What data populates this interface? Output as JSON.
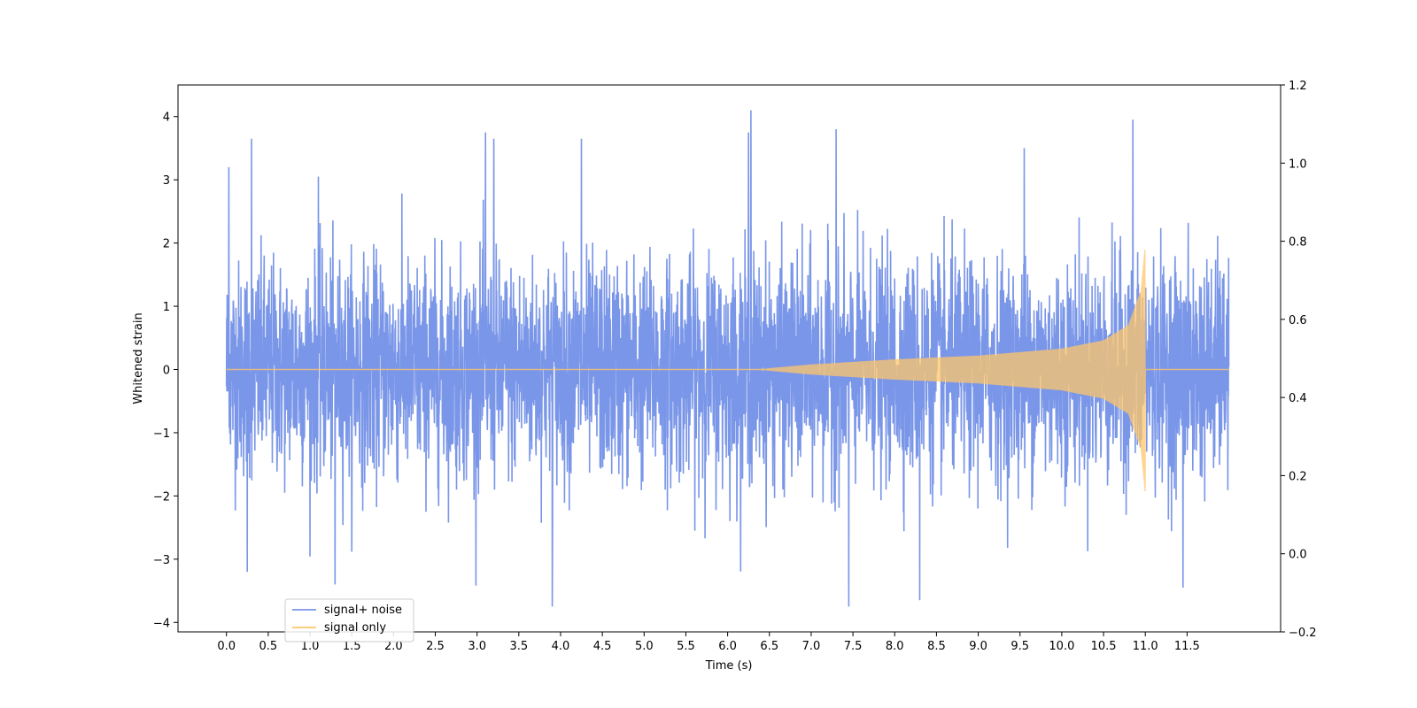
{
  "chart_data": {
    "type": "line",
    "title": "",
    "xlabel": "Time (s)",
    "ylabel": "Whitened strain",
    "xlim": [
      -0.58,
      12.62
    ],
    "ylim": [
      -4.15,
      4.5
    ],
    "ylim_right": [
      -0.2,
      1.2
    ],
    "x_ticks": [
      "0.0",
      "0.5",
      "1.0",
      "1.5",
      "2.0",
      "2.5",
      "3.0",
      "3.5",
      "4.0",
      "4.5",
      "5.0",
      "5.5",
      "6.0",
      "6.5",
      "7.0",
      "7.5",
      "8.0",
      "8.5",
      "9.0",
      "9.5",
      "10.0",
      "10.5",
      "11.0",
      "11.5"
    ],
    "y_ticks": [
      "−4",
      "−3",
      "−2",
      "−1",
      "0",
      "1",
      "2",
      "3",
      "4"
    ],
    "y_ticks_right": [
      "−0.2",
      "0.0",
      "0.2",
      "0.4",
      "0.6",
      "0.8",
      "1.0",
      "1.2"
    ],
    "grid": false,
    "legend_placement": "lower-left",
    "series": [
      {
        "name": "signal+ noise",
        "color": "#7a96e8",
        "description_values": {
          "x_range": [
            0.0,
            12.0
          ],
          "typical_envelope": [
            -2.3,
            2.3
          ],
          "peaks": [
            {
              "x": 0.03,
              "y": 3.2
            },
            {
              "x": 0.3,
              "y": 3.65
            },
            {
              "x": 1.1,
              "y": 3.05
            },
            {
              "x": 3.1,
              "y": 3.75
            },
            {
              "x": 3.2,
              "y": 3.65
            },
            {
              "x": 4.25,
              "y": 3.65
            },
            {
              "x": 6.25,
              "y": 3.75
            },
            {
              "x": 6.28,
              "y": 4.1
            },
            {
              "x": 7.3,
              "y": 3.8
            },
            {
              "x": 9.55,
              "y": 3.5
            },
            {
              "x": 10.85,
              "y": 3.95
            },
            {
              "x": 3.9,
              "y": -3.75
            },
            {
              "x": 7.45,
              "y": -3.75
            },
            {
              "x": 8.3,
              "y": -3.65
            },
            {
              "x": 11.45,
              "y": -3.45
            },
            {
              "x": 1.3,
              "y": -3.4
            },
            {
              "x": 0.25,
              "y": -3.2
            }
          ]
        }
      },
      {
        "name": "signal only",
        "color": "#ffc66b",
        "description_values": {
          "type": "chirp",
          "onset_x": 6.4,
          "merger_x": 10.98,
          "ringdown_end_x": 11.0,
          "amplitude_points": [
            {
              "x": 6.5,
              "y": 0.02
            },
            {
              "x": 7.0,
              "y": 0.08
            },
            {
              "x": 8.0,
              "y": 0.16
            },
            {
              "x": 9.0,
              "y": 0.22
            },
            {
              "x": 10.0,
              "y": 0.33
            },
            {
              "x": 10.5,
              "y": 0.46
            },
            {
              "x": 10.8,
              "y": 0.7
            },
            {
              "x": 10.95,
              "y": 1.25
            },
            {
              "x": 11.0,
              "y": 1.95
            }
          ]
        }
      }
    ]
  }
}
